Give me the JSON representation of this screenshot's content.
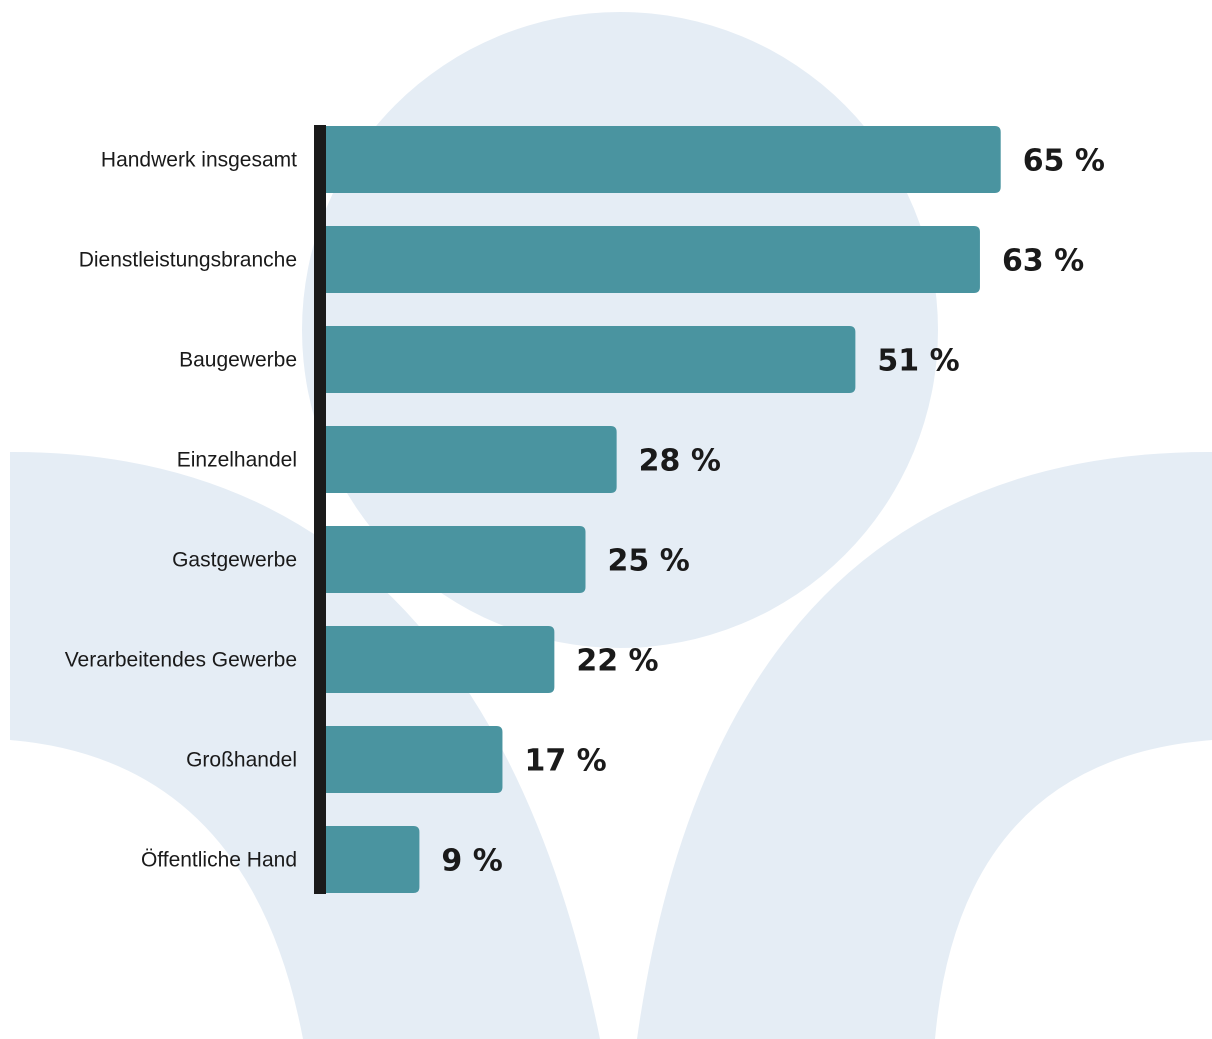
{
  "chart_data": {
    "type": "bar",
    "orientation": "horizontal",
    "categories": [
      "Handwerk insgesamt",
      "Dienstleistungsbranche",
      "Baugewerbe",
      "Einzelhandel",
      "Gastgewerbe",
      "Verarbeitendes Gewerbe",
      "Großhandel",
      "Öffentliche Hand"
    ],
    "values": [
      65,
      63,
      51,
      28,
      25,
      22,
      17,
      9
    ],
    "value_labels": [
      "65 %",
      "63 %",
      "51 %",
      "28 %",
      "25 %",
      "22 %",
      "17 %",
      "9 %"
    ],
    "title": "",
    "xlabel": "",
    "ylabel": "",
    "xlim": [
      0,
      100
    ],
    "grid": false,
    "legend": "none"
  },
  "colors": {
    "bar": "#4a94a0",
    "axis": "#1a1a1a",
    "background_shapes": "#e5edf5",
    "text": "#1a1a1a"
  }
}
